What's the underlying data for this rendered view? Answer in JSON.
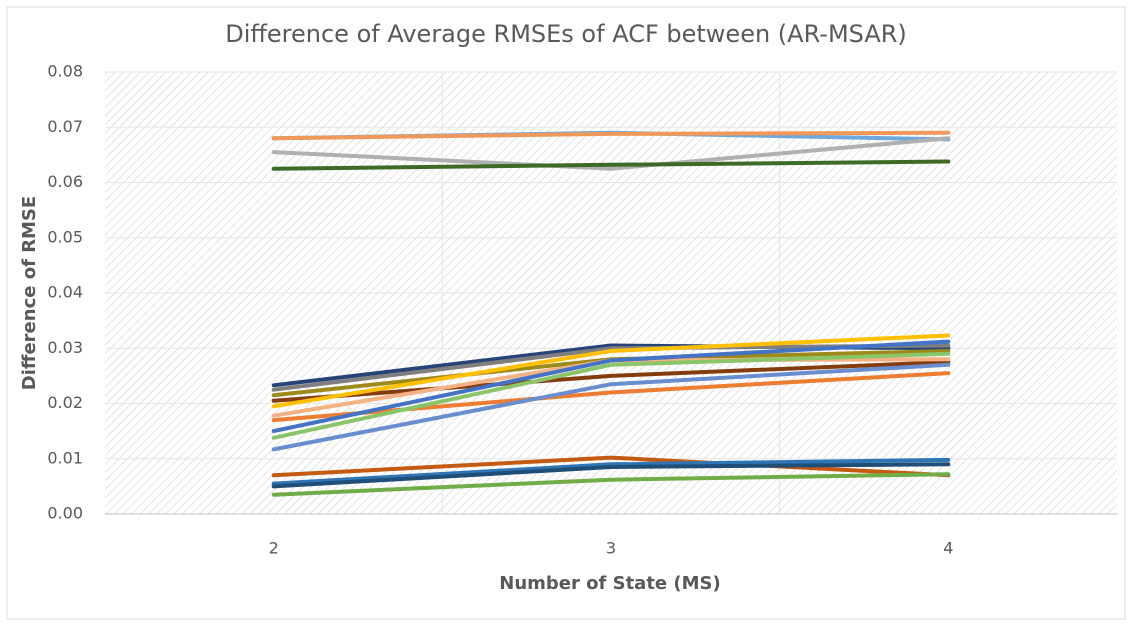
{
  "chart_data": {
    "type": "line",
    "title": "Difference of Average RMSEs of ACF between (AR-MSAR)",
    "x_label": "Number of State (MS)",
    "y_label": "Difference of RMSE",
    "categories": [
      "2",
      "3",
      "4"
    ],
    "ylim": [
      0,
      0.08
    ],
    "yticks": [
      {
        "value": 0,
        "label": "0.00"
      },
      {
        "value": 0.01,
        "label": "0.01"
      },
      {
        "value": 0.02,
        "label": "0.02"
      },
      {
        "value": 0.03,
        "label": "0.03"
      },
      {
        "value": 0.04,
        "label": "0.04"
      },
      {
        "value": 0.05,
        "label": "0.05"
      },
      {
        "value": 0.06,
        "label": "0.06"
      },
      {
        "value": 0.07,
        "label": "0.07"
      },
      {
        "value": 0.08,
        "label": "0.08"
      }
    ],
    "grid": true,
    "series": [
      {
        "color": "#6fa8dc",
        "values": [
          0.068,
          0.069,
          0.0678
        ]
      },
      {
        "color": "#f0995b",
        "values": [
          0.068,
          0.0688,
          0.069
        ]
      },
      {
        "color": "#b0b0b0",
        "values": [
          0.0655,
          0.0625,
          0.068
        ]
      },
      {
        "color": "#3d6b27",
        "values": [
          0.0625,
          0.0632,
          0.0638
        ]
      },
      {
        "color": "#264478",
        "values": [
          0.0233,
          0.0305,
          0.03
        ]
      },
      {
        "color": "#7f7f7f",
        "values": [
          0.0225,
          0.03,
          0.0305
        ]
      },
      {
        "color": "#9e8a1a",
        "values": [
          0.0215,
          0.028,
          0.0295
        ]
      },
      {
        "color": "#843c0c",
        "values": [
          0.0205,
          0.025,
          0.0275
        ]
      },
      {
        "color": "#ffc000",
        "values": [
          0.0195,
          0.0295,
          0.0323
        ]
      },
      {
        "color": "#f4b183",
        "values": [
          0.0178,
          0.0278,
          0.028
        ]
      },
      {
        "color": "#ed7d31",
        "values": [
          0.017,
          0.022,
          0.0255
        ]
      },
      {
        "color": "#4472c4",
        "values": [
          0.015,
          0.0278,
          0.0312
        ]
      },
      {
        "color": "#8bc56a",
        "values": [
          0.0138,
          0.027,
          0.029
        ]
      },
      {
        "color": "#698ed0",
        "values": [
          0.0117,
          0.0235,
          0.027
        ]
      },
      {
        "color": "#c55a11",
        "values": [
          0.007,
          0.0102,
          0.007
        ]
      },
      {
        "color": "#2e75b6",
        "values": [
          0.0055,
          0.009,
          0.0098
        ]
      },
      {
        "color": "#1f4e79",
        "values": [
          0.005,
          0.0085,
          0.009
        ]
      },
      {
        "color": "#70ad47",
        "values": [
          0.0035,
          0.0062,
          0.0072
        ]
      }
    ]
  }
}
